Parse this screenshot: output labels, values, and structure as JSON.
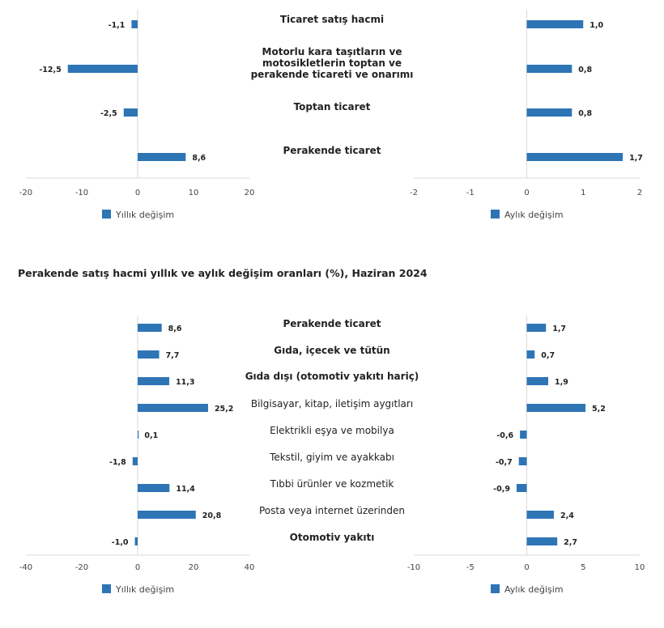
{
  "section_title": "Perakende satış hacmi yıllık ve aylık değişim oranları (%), Haziran 2024",
  "colors": {
    "bar": "#2E75B6",
    "axis": "#D9D9D9"
  },
  "chart_data": [
    {
      "type": "bar",
      "orientation": "horizontal",
      "categories": [
        "Ticaret satış hacmi",
        "Motorlu kara taşıtların ve motosikletlerin toptan ve perakende ticareti ve onarımı",
        "Toptan ticaret",
        "Perakende ticaret"
      ],
      "category_lines": [
        [
          "Ticaret satış hacmi"
        ],
        [
          "Motorlu kara taşıtların ve",
          "motosikletlerin toptan ve",
          "perakende ticareti ve onarımı"
        ],
        [
          "Toptan ticaret"
        ],
        [
          "Perakende ticaret"
        ]
      ],
      "category_bold": [
        true,
        true,
        true,
        true
      ],
      "series": [
        {
          "name": "Yıllık değişim",
          "values": [
            -1.1,
            -12.5,
            -2.5,
            8.6
          ],
          "labels": [
            "-1,1",
            "-12,5",
            "-2,5",
            "8,6"
          ]
        }
      ],
      "xlim": [
        -20,
        20
      ],
      "xticks": [
        -20,
        -10,
        0,
        10,
        20
      ],
      "xtick_labels": [
        "-20",
        "-10",
        "0",
        "10",
        "20"
      ],
      "legend": "bottom"
    },
    {
      "type": "bar",
      "orientation": "horizontal",
      "categories": [
        "Ticaret satış hacmi",
        "Motorlu kara taşıtların ve motosikletlerin toptan ve perakende ticareti ve onarımı",
        "Toptan ticaret",
        "Perakende ticaret"
      ],
      "series": [
        {
          "name": "Aylık değişim",
          "values": [
            1.0,
            0.8,
            0.8,
            1.7
          ],
          "labels": [
            "1,0",
            "0,8",
            "0,8",
            "1,7"
          ]
        }
      ],
      "xlim": [
        -2,
        2
      ],
      "xticks": [
        -2,
        -1,
        0,
        1,
        2
      ],
      "xtick_labels": [
        "-2",
        "-1",
        "0",
        "1",
        "2"
      ],
      "legend": "bottom"
    },
    {
      "type": "bar",
      "orientation": "horizontal",
      "title": "Perakende satış hacmi yıllık ve aylık değişim oranları (%), Haziran 2024",
      "categories": [
        "Perakende ticaret",
        "Gıda, içecek ve tütün",
        "Gıda dışı (otomotiv yakıtı hariç)",
        "Bilgisayar, kitap, iletişim aygıtları",
        "Elektrikli eşya ve mobilya",
        "Tekstil, giyim ve ayakkabı",
        "Tıbbi ürünler ve kozmetik",
        "Posta veya internet üzerinden",
        "Otomotiv yakıtı"
      ],
      "category_lines": [
        [
          "Perakende ticaret"
        ],
        [
          "Gıda, içecek ve tütün"
        ],
        [
          "Gıda dışı (otomotiv yakıtı hariç)"
        ],
        [
          "Bilgisayar, kitap, iletişim aygıtları"
        ],
        [
          "Elektrikli eşya ve mobilya"
        ],
        [
          "Tekstil, giyim ve ayakkabı"
        ],
        [
          "Tıbbi ürünler ve kozmetik"
        ],
        [
          "Posta veya internet üzerinden"
        ],
        [
          "Otomotiv yakıtı"
        ]
      ],
      "category_bold": [
        true,
        true,
        true,
        false,
        false,
        false,
        false,
        false,
        true
      ],
      "series": [
        {
          "name": "Yıllık değişim",
          "values": [
            8.6,
            7.7,
            11.3,
            25.2,
            0.1,
            -1.8,
            11.4,
            20.8,
            -1.0
          ],
          "labels": [
            "8,6",
            "7,7",
            "11,3",
            "25,2",
            "0,1",
            "-1,8",
            "11,4",
            "20,8",
            "-1,0"
          ]
        }
      ],
      "xlim": [
        -40,
        40
      ],
      "xticks": [
        -40,
        -20,
        0,
        20,
        40
      ],
      "xtick_labels": [
        "-40",
        "-20",
        "0",
        "20",
        "40"
      ],
      "legend": "bottom"
    },
    {
      "type": "bar",
      "orientation": "horizontal",
      "title": "Perakende satış hacmi yıllık ve aylık değişim oranları (%), Haziran 2024",
      "categories": [
        "Perakende ticaret",
        "Gıda, içecek ve tütün",
        "Gıda dışı (otomotiv yakıtı hariç)",
        "Bilgisayar, kitap, iletişim aygıtları",
        "Elektrikli eşya ve mobilya",
        "Tekstil, giyim ve ayakkabı",
        "Tıbbi ürünler ve kozmetik",
        "Posta veya internet üzerinden",
        "Otomotiv yakıtı"
      ],
      "series": [
        {
          "name": "Aylık değişim",
          "values": [
            1.7,
            0.7,
            1.9,
            5.2,
            -0.6,
            -0.7,
            -0.9,
            2.4,
            2.7
          ],
          "labels": [
            "1,7",
            "0,7",
            "1,9",
            "5,2",
            "-0,6",
            "-0,7",
            "-0,9",
            "2,4",
            "2,7"
          ]
        }
      ],
      "xlim": [
        -10,
        10
      ],
      "xticks": [
        -10,
        -5,
        0,
        5,
        10
      ],
      "xtick_labels": [
        "-10",
        "-5",
        "0",
        "5",
        "10"
      ],
      "legend": "bottom"
    }
  ]
}
